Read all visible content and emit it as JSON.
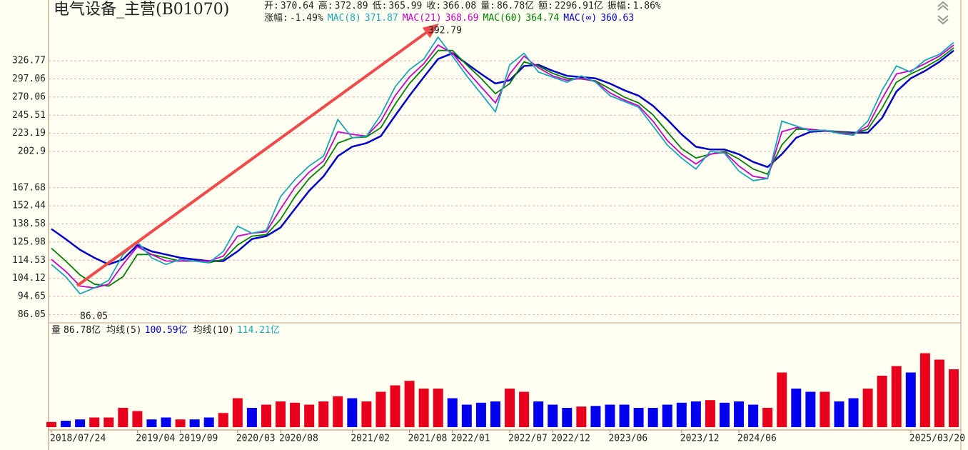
{
  "chart_data": [
    {
      "type": "line",
      "log_scale": true,
      "grid": true,
      "title": "电气设备_主营(B01070)",
      "quote": [
        {
          "label": "开:",
          "value": "370.64"
        },
        {
          "label": "高:",
          "value": "372.89"
        },
        {
          "label": "低:",
          "value": "365.99"
        },
        {
          "label": "收:",
          "value": "366.08"
        },
        {
          "label": "量:",
          "value": "86.78亿"
        },
        {
          "label": "额:",
          "value": "2296.91亿"
        },
        {
          "label": "振幅:",
          "value": "1.86%"
        }
      ],
      "change": {
        "label": "涨幅:",
        "value": "-1.49%"
      },
      "annotations": [
        "392.79",
        "86.05"
      ],
      "categories": [
        "2018/07/24",
        null,
        null,
        null,
        null,
        null,
        "2019/04",
        null,
        null,
        "2019/09",
        null,
        null,
        null,
        "2020/03",
        null,
        null,
        "2020/08",
        null,
        null,
        null,
        null,
        "2021/02",
        null,
        null,
        null,
        "2021/08",
        null,
        null,
        "2022/01",
        null,
        null,
        null,
        "2022/07",
        null,
        null,
        "2022/12",
        null,
        null,
        null,
        "2023/06",
        null,
        null,
        null,
        null,
        "2023/12",
        null,
        null,
        null,
        "2024/06",
        null,
        null,
        null,
        null,
        null,
        null,
        null,
        null,
        null,
        null,
        null,
        "2025/03/20",
        null,
        null,
        null
      ],
      "ylim": [
        83,
        450
      ],
      "yticks": [
        86.05,
        94.65,
        104.12,
        114.53,
        125.98,
        138.58,
        152.44,
        167.68,
        202.9,
        223.19,
        245.51,
        270.06,
        297.06,
        326.77
      ],
      "series": [
        {
          "name": "MAC(8)",
          "legend_value": "371.87",
          "color": "#1aa6b7",
          "values": [
            112,
            105,
            96,
            99,
            103,
            118,
            126,
            116,
            112,
            115,
            114,
            113,
            120,
            137,
            132,
            134,
            160,
            175,
            188,
            198,
            240,
            218,
            220,
            246,
            285,
            312,
            330,
            370,
            335,
            302,
            275,
            250,
            320,
            340,
            308,
            300,
            292,
            302,
            292,
            272,
            264,
            256,
            232,
            210,
            196,
            185,
            203,
            201,
            183,
            174,
            176,
            238,
            232,
            226,
            227,
            223,
            221,
            238,
            280,
            318,
            308,
            328,
            338,
            360
          ]
        },
        {
          "name": "MAC(21)",
          "legend_value": "368.69",
          "color": "#c800c8",
          "values": [
            115,
            108,
            100,
            99,
            101,
            112,
            123,
            118,
            114,
            114,
            114,
            114,
            117,
            130,
            132,
            133,
            150,
            168,
            182,
            193,
            225,
            222,
            220,
            238,
            272,
            300,
            322,
            355,
            340,
            310,
            285,
            262,
            305,
            335,
            315,
            302,
            295,
            298,
            293,
            276,
            266,
            258,
            238,
            215,
            200,
            190,
            200,
            202,
            188,
            178,
            176,
            225,
            230,
            228,
            226,
            224,
            222,
            232,
            268,
            305,
            310,
            322,
            335,
            355
          ]
        },
        {
          "name": "MAC(60)",
          "legend_value": "364.74",
          "color": "#008000",
          "values": [
            122,
            114,
            106,
            101,
            100,
            105,
            118,
            118,
            116,
            114,
            114,
            113,
            115,
            124,
            130,
            131,
            142,
            160,
            176,
            188,
            212,
            218,
            219,
            230,
            260,
            290,
            315,
            345,
            345,
            320,
            298,
            275,
            290,
            325,
            318,
            306,
            298,
            297,
            294,
            282,
            270,
            262,
            246,
            225,
            206,
            196,
            200,
            203,
            195,
            185,
            180,
            210,
            228,
            228,
            226,
            225,
            223,
            228,
            255,
            292,
            305,
            316,
            330,
            350
          ]
        },
        {
          "name": "MAC(∞)",
          "legend_value": "360.63",
          "color": "#0000c8",
          "values": [
            135,
            128,
            121,
            116,
            112,
            115,
            124,
            120,
            118,
            116,
            115,
            114,
            114,
            120,
            128,
            130,
            136,
            150,
            165,
            178,
            198,
            208,
            212,
            220,
            245,
            272,
            300,
            330,
            340,
            322,
            305,
            290,
            295,
            318,
            320,
            310,
            302,
            300,
            298,
            290,
            280,
            272,
            258,
            240,
            222,
            208,
            205,
            205,
            200,
            192,
            187,
            200,
            218,
            225,
            226,
            225,
            224,
            224,
            242,
            278,
            298,
            310,
            325,
            345
          ]
        }
      ]
    },
    {
      "type": "bar",
      "info": [
        {
          "label": "量",
          "value": "86.78亿",
          "color": "#111111"
        },
        {
          "label": "均线(5)",
          "value": "100.59亿",
          "color": "#0000c8"
        },
        {
          "label": "均线(10)",
          "value": "114.21亿",
          "color": "#1aa6b7"
        }
      ],
      "up_color": "#e8001c",
      "down_color": "#0000ee",
      "ylim": [
        0,
        140
      ],
      "values": [
        8,
        10,
        12,
        15,
        15,
        30,
        25,
        12,
        15,
        12,
        12,
        15,
        22,
        45,
        30,
        35,
        40,
        38,
        35,
        40,
        48,
        45,
        40,
        55,
        65,
        72,
        60,
        60,
        45,
        35,
        38,
        40,
        60,
        55,
        40,
        35,
        30,
        32,
        33,
        35,
        35,
        30,
        30,
        35,
        38,
        40,
        42,
        38,
        40,
        35,
        30,
        85,
        60,
        55,
        55,
        40,
        45,
        60,
        80,
        95,
        85,
        115,
        105,
        90
      ]
    }
  ]
}
